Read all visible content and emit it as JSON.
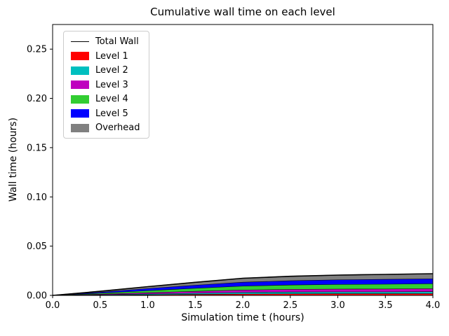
{
  "figure": {
    "title": "Cumulative wall time on each level",
    "xlabel": "Simulation time t (hours)",
    "ylabel": "Wall time (hours)"
  },
  "chart_data": {
    "type": "area",
    "stacked": true,
    "title": "Cumulative wall time on each level",
    "xlabel": "Simulation time t (hours)",
    "ylabel": "Wall time (hours)",
    "grid": false,
    "legend_position": "upper left",
    "xlim": [
      0,
      4
    ],
    "ylim": [
      0,
      0.275
    ],
    "x": [
      0,
      0.5,
      1.0,
      1.5,
      2.0,
      2.5,
      3.0,
      3.5,
      4.0
    ],
    "xtick_values": [
      0,
      0.5,
      1.0,
      1.5,
      2.0,
      2.5,
      3.0,
      3.5,
      4.0
    ],
    "xtick_labels": [
      "0.0",
      "0.5",
      "1.0",
      "1.5",
      "2.0",
      "2.5",
      "3.0",
      "3.5",
      "4.0"
    ],
    "ytick_values": [
      0,
      0.05,
      0.1,
      0.15,
      0.2,
      0.25
    ],
    "ytick_labels": [
      "0.00",
      "0.05",
      "0.10",
      "0.15",
      "0.20",
      "0.25"
    ],
    "series": [
      {
        "name": "Level 1",
        "color": "#ff0000",
        "values": [
          0,
          0.0004,
          0.0008,
          0.0012,
          0.0016,
          0.0018,
          0.0019,
          0.0019,
          0.002
        ]
      },
      {
        "name": "Level 2",
        "color": "#00bfbf",
        "values": [
          0,
          0.0004,
          0.0008,
          0.0012,
          0.0016,
          0.0018,
          0.0019,
          0.0019,
          0.002
        ]
      },
      {
        "name": "Level 3",
        "color": "#bf00bf",
        "values": [
          0,
          0.0006,
          0.0013,
          0.0019,
          0.0024,
          0.0027,
          0.0028,
          0.0029,
          0.003
        ]
      },
      {
        "name": "Level 4",
        "color": "#32cd32",
        "values": [
          0,
          0.001,
          0.0021,
          0.0031,
          0.004,
          0.0044,
          0.0047,
          0.0049,
          0.005
        ]
      },
      {
        "name": "Level 5",
        "color": "#0000ff",
        "values": [
          0,
          0.001,
          0.0021,
          0.0031,
          0.004,
          0.0044,
          0.0047,
          0.0049,
          0.005
        ]
      },
      {
        "name": "Overhead",
        "color": "#808080",
        "values": [
          0,
          0.0008,
          0.0018,
          0.0028,
          0.0038,
          0.0043,
          0.0046,
          0.0048,
          0.005
        ]
      }
    ],
    "total_line": {
      "name": "Total Wall",
      "color": "#000000",
      "values": [
        0,
        0.0042,
        0.0089,
        0.0133,
        0.0174,
        0.0194,
        0.0206,
        0.0213,
        0.022
      ]
    },
    "legend": [
      {
        "type": "line",
        "label": "Total Wall",
        "color": "#000000"
      },
      {
        "type": "patch",
        "label": "Level 1",
        "color": "#ff0000"
      },
      {
        "type": "patch",
        "label": "Level 2",
        "color": "#00bfbf"
      },
      {
        "type": "patch",
        "label": "Level 3",
        "color": "#bf00bf"
      },
      {
        "type": "patch",
        "label": "Level 4",
        "color": "#32cd32"
      },
      {
        "type": "patch",
        "label": "Level 5",
        "color": "#0000ff"
      },
      {
        "type": "patch",
        "label": "Overhead",
        "color": "#808080"
      }
    ]
  }
}
